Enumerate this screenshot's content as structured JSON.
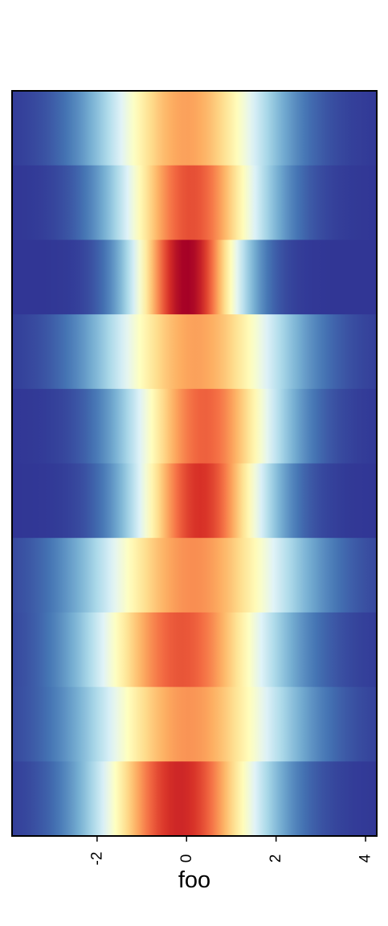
{
  "chart_data": {
    "type": "heatmap",
    "title": "",
    "xlabel": "foo",
    "ylabel": "",
    "xlim": [
      -3.9,
      4.25
    ],
    "x_ticks": [
      -2,
      0,
      2,
      4
    ],
    "x_tick_labels": [
      "-2",
      "0",
      "2",
      "4"
    ],
    "tick_label_rotation": "vertical",
    "grid": false,
    "legend": "none",
    "colormap": [
      "#313695",
      "#4575b4",
      "#74add1",
      "#abd9e9",
      "#e0f3f8",
      "#ffffbf",
      "#fee090",
      "#fdae61",
      "#f46d43",
      "#d73027",
      "#a50026"
    ],
    "value_range": [
      0,
      1
    ],
    "rows": [
      {
        "row": 1,
        "center": 0.0,
        "width": 1.35,
        "peak": 0.72
      },
      {
        "row": 2,
        "center": 0.1,
        "width": 1.15,
        "peak": 0.85
      },
      {
        "row": 3,
        "center": 0.0,
        "width": 0.85,
        "peak": 1.0
      },
      {
        "row": 4,
        "center": 0.2,
        "width": 1.45,
        "peak": 0.72
      },
      {
        "row": 5,
        "center": 0.4,
        "width": 1.2,
        "peak": 0.82
      },
      {
        "row": 6,
        "center": 0.3,
        "width": 1.05,
        "peak": 0.9
      },
      {
        "row": 7,
        "center": 0.15,
        "width": 1.6,
        "peak": 0.75
      },
      {
        "row": 8,
        "center": -0.1,
        "width": 1.45,
        "peak": 0.84
      },
      {
        "row": 9,
        "center": 0.05,
        "width": 1.55,
        "peak": 0.74
      },
      {
        "row": 10,
        "center": -0.15,
        "width": 1.3,
        "peak": 0.92
      }
    ]
  }
}
